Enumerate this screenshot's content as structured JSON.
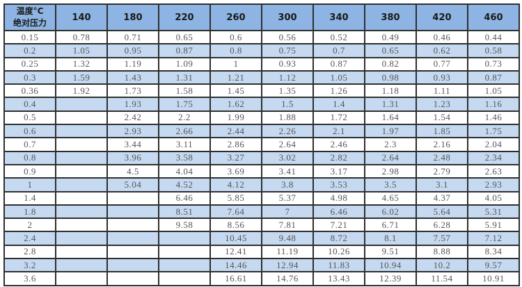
{
  "table": {
    "corner_line1": "温度°C",
    "corner_line2": "绝对压力",
    "headers": [
      "140",
      "180",
      "220",
      "260",
      "300",
      "340",
      "380",
      "420",
      "460"
    ],
    "colors": {
      "header_bg": "#8db4e2",
      "alt_row_bg": "#c5d9f1",
      "border": "#2e2e2e"
    },
    "rows": [
      [
        "0.15",
        "0.78",
        "0.71",
        "0.65",
        "0.6",
        "0.56",
        "0.52",
        "0.49",
        "0.46",
        "0.44"
      ],
      [
        "0.2",
        "1.05",
        "0.95",
        "0.87",
        "0.8",
        "0.75",
        "0.7",
        "0.65",
        "0.62",
        "0.58"
      ],
      [
        "0.25",
        "1.32",
        "1.19",
        "1.09",
        "1",
        "0.93",
        "0.87",
        "0.82",
        "0.77",
        "0.73"
      ],
      [
        "0.3",
        "1.59",
        "1.43",
        "1.31",
        "1.21",
        "1.12",
        "1.05",
        "0.98",
        "0.93",
        "0.87"
      ],
      [
        "0.36",
        "1.92",
        "1.73",
        "1.58",
        "1.45",
        "1.35",
        "1.26",
        "1.18",
        "1.11",
        "1.05"
      ],
      [
        "0.4",
        "",
        "1.93",
        "1.75",
        "1.62",
        "1.5",
        "1.4",
        "1.31",
        "1.23",
        "1.16"
      ],
      [
        "0.5",
        "",
        "2.42",
        "2.2",
        "1.99",
        "1.88",
        "1.72",
        "1.64",
        "1.54",
        "1.46"
      ],
      [
        "0.6",
        "",
        "2.93",
        "2.66",
        "2.44",
        "2.26",
        "2.1",
        "1.97",
        "1.85",
        "1.75"
      ],
      [
        "0.7",
        "",
        "3.44",
        "3.11",
        "2.86",
        "2.64",
        "2.46",
        "2.3",
        "2.16",
        "2.04"
      ],
      [
        "0.8",
        "",
        "3.96",
        "3.58",
        "3.27",
        "3.02",
        "2.82",
        "2.64",
        "2.48",
        "2.34"
      ],
      [
        "0.9",
        "",
        "4.5",
        "4.04",
        "3.69",
        "3.41",
        "3.17",
        "2.98",
        "2.79",
        "2.63"
      ],
      [
        "1",
        "",
        "5.04",
        "4.52",
        "4.12",
        "3.8",
        "3.53",
        "3.5",
        "3.1",
        "2.93"
      ],
      [
        "1.4",
        "",
        "",
        "6.46",
        "5.85",
        "5.37",
        "4.98",
        "4.65",
        "4.37",
        "4.05"
      ],
      [
        "1.8",
        "",
        "",
        "8.51",
        "7.64",
        "7",
        "6.46",
        "6.02",
        "5.64",
        "5.31"
      ],
      [
        "2",
        "",
        "",
        "9.58",
        "8.56",
        "7.81",
        "7.21",
        "6.71",
        "6.28",
        "5.91"
      ],
      [
        "2.4",
        "",
        "",
        "",
        "10.45",
        "9.48",
        "8.72",
        "8.1",
        "7.57",
        "7.12"
      ],
      [
        "2.8",
        "",
        "",
        "",
        "12.41",
        "11.19",
        "10.26",
        "9.51",
        "8.88",
        "8.34"
      ],
      [
        "3.2",
        "",
        "",
        "",
        "14.46",
        "12.94",
        "11.83",
        "10.94",
        "10.2",
        "9.57"
      ],
      [
        "3.6",
        "",
        "",
        "",
        "16.61",
        "14.76",
        "13.43",
        "12.39",
        "11.54",
        "10.91"
      ]
    ]
  }
}
